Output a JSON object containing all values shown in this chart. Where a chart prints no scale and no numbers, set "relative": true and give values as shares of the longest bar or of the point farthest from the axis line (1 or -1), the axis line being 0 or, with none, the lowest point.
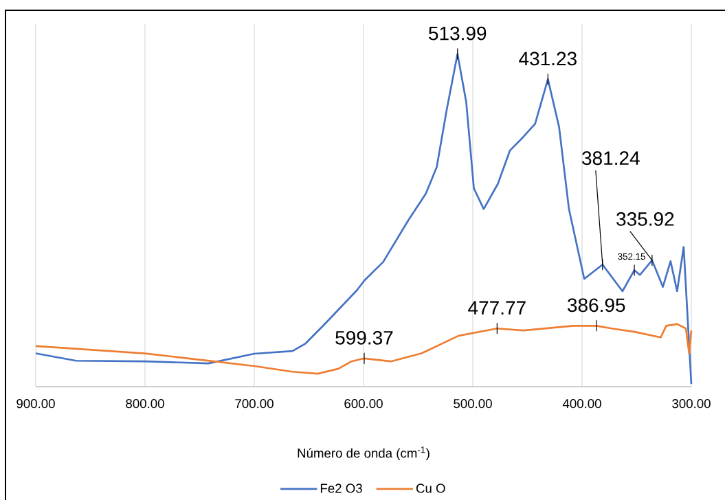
{
  "chart_data": {
    "type": "line",
    "relative": true,
    "xlabel": "Número de onda (cm$^{-1}$)",
    "xlim": [
      900,
      300
    ],
    "xticks": [
      {
        "value": 900,
        "label": "900.00"
      },
      {
        "value": 800,
        "label": "800.00"
      },
      {
        "value": 700,
        "label": "700.00"
      },
      {
        "value": 600,
        "label": "600.00"
      },
      {
        "value": 500,
        "label": "500.00"
      },
      {
        "value": 400,
        "label": "400.00"
      },
      {
        "value": 300,
        "label": "300.00"
      }
    ],
    "grid": "x",
    "legend": "bottom",
    "marker": "none",
    "line_style": "solid",
    "series": [
      {
        "name": "Fe2 O3",
        "color": "#4472c4",
        "x": [
          900,
          863,
          800,
          742,
          700,
          665,
          653,
          635,
          606,
          599,
          582,
          559,
          543,
          533,
          524,
          513.99,
          506,
          499,
          490,
          477,
          466,
          454,
          443,
          431.23,
          421,
          412,
          398,
          381.24,
          363,
          352.15,
          347,
          335.92,
          326,
          319,
          313,
          307,
          300
        ],
        "values": [
          0.1,
          0.078,
          0.076,
          0.07,
          0.099,
          0.107,
          0.13,
          0.19,
          0.29,
          0.32,
          0.375,
          0.5,
          0.58,
          0.66,
          0.83,
          1.0,
          0.855,
          0.596,
          0.534,
          0.61,
          0.71,
          0.75,
          0.79,
          0.924,
          0.78,
          0.534,
          0.324,
          0.367,
          0.287,
          0.35,
          0.336,
          0.38,
          0.3,
          0.377,
          0.287,
          0.42,
          0.008
        ]
      },
      {
        "name": "Cu O",
        "color": "#ed7d31",
        "x": [
          900,
          800,
          737,
          700,
          665,
          642,
          623,
          611,
          599.37,
          575,
          547,
          513,
          477.77,
          454,
          408,
          386.95,
          373,
          352,
          328,
          323,
          313,
          305,
          302,
          300
        ],
        "values": [
          0.122,
          0.1,
          0.076,
          0.062,
          0.045,
          0.039,
          0.054,
          0.076,
          0.085,
          0.076,
          0.1,
          0.153,
          0.175,
          0.169,
          0.183,
          0.183,
          0.175,
          0.165,
          0.148,
          0.183,
          0.188,
          0.175,
          0.1,
          0.169
        ]
      }
    ],
    "annotations": [
      {
        "text": "513.99",
        "x": 513.99,
        "y": 1.0
      },
      {
        "text": "431.23",
        "x": 431.23,
        "y": 0.924
      },
      {
        "text": "381.24",
        "x": 381.24,
        "y": 0.367
      },
      {
        "text": "352.15",
        "x": 352.15,
        "y": 0.35
      },
      {
        "text": "335.92",
        "x": 335.92,
        "y": 0.38
      },
      {
        "text": "599.37",
        "x": 599.37,
        "y": 0.085
      },
      {
        "text": "477.77",
        "x": 477.77,
        "y": 0.175
      },
      {
        "text": "386.95",
        "x": 386.95,
        "y": 0.183
      }
    ]
  }
}
